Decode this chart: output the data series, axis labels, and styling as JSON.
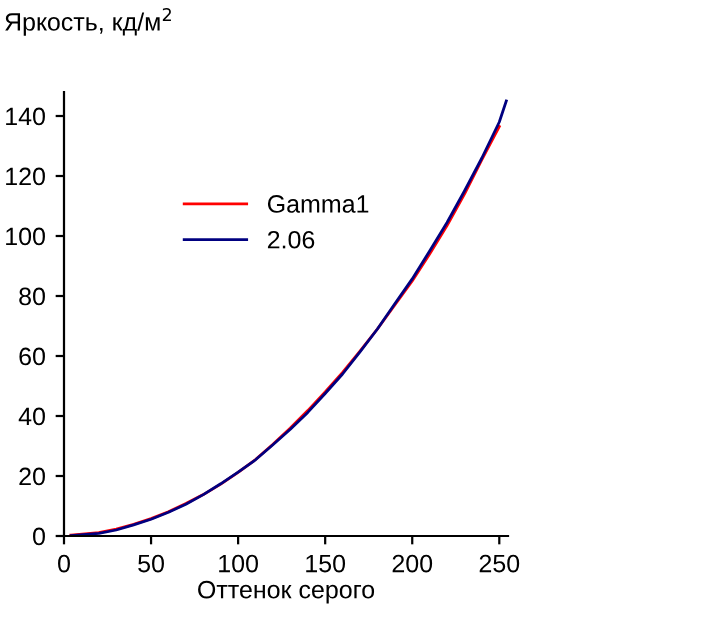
{
  "chart_data": {
    "type": "line",
    "xlabel": "Оттенок серого",
    "ylabel": "Яркость, кд/м$^{2}$",
    "xlim": [
      0,
      255
    ],
    "ylim": [
      0,
      148
    ],
    "xticks": [
      0,
      50,
      100,
      150,
      200,
      250
    ],
    "yticks": [
      0,
      20,
      40,
      60,
      80,
      100,
      120,
      140
    ],
    "grid": false,
    "legend": "top left",
    "marker": "none",
    "line_style": "solid",
    "series": [
      {
        "name": "Gamma1",
        "color": "#ff0000",
        "x": [
          4,
          20,
          30,
          40,
          50,
          60,
          70,
          80,
          90,
          100,
          110,
          120,
          130,
          140,
          150,
          160,
          170,
          180,
          190,
          200,
          210,
          220,
          230,
          240,
          250
        ],
        "values": [
          0.3,
          1.1,
          2.3,
          3.9,
          5.8,
          8.1,
          10.8,
          13.8,
          17.3,
          21.2,
          25.5,
          30.6,
          36,
          41.8,
          48,
          54.5,
          61.6,
          69,
          77,
          85,
          94,
          103.5,
          114,
          125.5,
          136.5
        ]
      },
      {
        "name": "2.06",
        "color": "#000080",
        "x": [
          4,
          20,
          30,
          40,
          50,
          60,
          70,
          80,
          90,
          100,
          110,
          120,
          130,
          140,
          150,
          160,
          170,
          180,
          190,
          200,
          210,
          220,
          230,
          240,
          250,
          254
        ],
        "values": [
          0.1,
          0.9,
          2,
          3.7,
          5.6,
          7.9,
          10.6,
          13.8,
          17.4,
          21.3,
          25.4,
          30.4,
          35.6,
          41.2,
          47.5,
          54,
          61.4,
          69,
          77.4,
          85.7,
          95,
          104.5,
          115,
          126,
          138,
          145
        ]
      }
    ]
  }
}
